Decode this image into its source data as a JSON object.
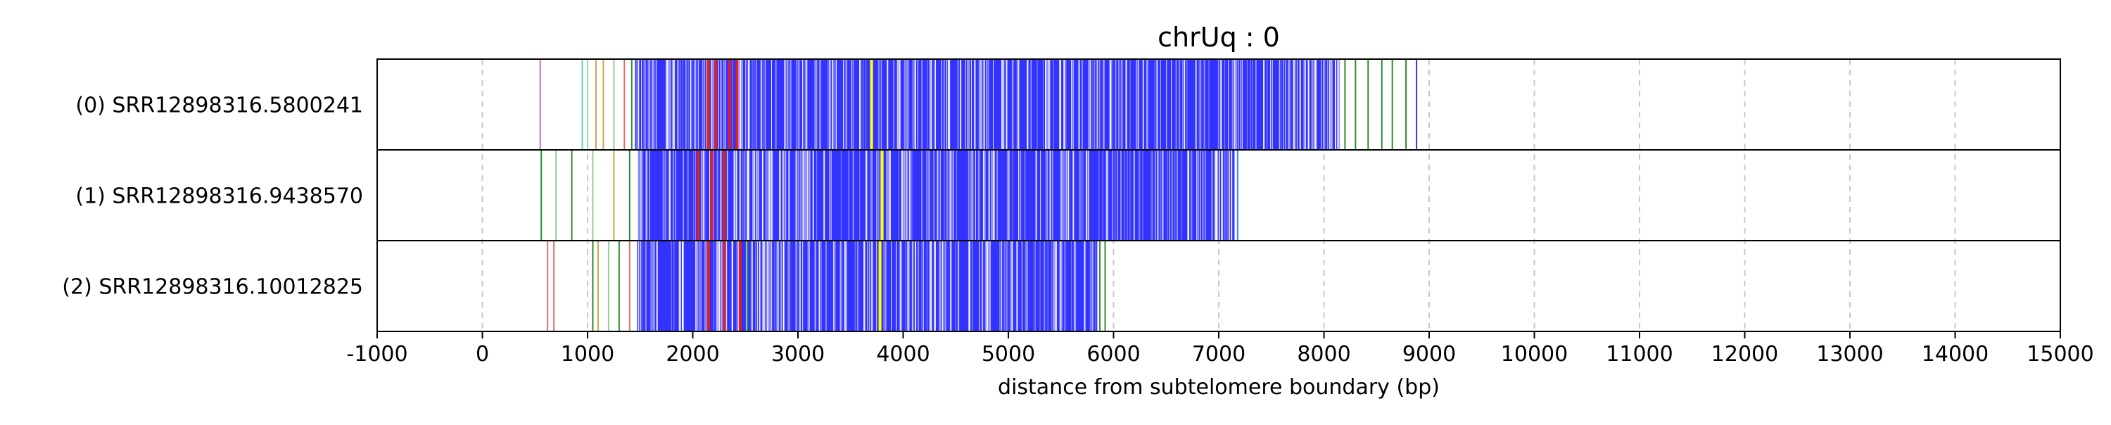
{
  "chart_data": {
    "type": "bar",
    "title": "chrUq : 0",
    "xlabel": "distance from subtelomere boundary (bp)",
    "ylabel": "",
    "xlim": [
      -1000,
      15000
    ],
    "x_ticks": [
      -1000,
      0,
      1000,
      2000,
      3000,
      4000,
      5000,
      6000,
      7000,
      8000,
      9000,
      10000,
      11000,
      12000,
      13000,
      14000,
      15000
    ],
    "grid": "x-dashed",
    "legend": "none",
    "colors": {
      "dense_blue": "#3333ff",
      "green": "#2e8b2e",
      "red": "#e02020",
      "yellow": "#ffff00",
      "light_blue": "#9999ff",
      "grid": "#c8c8c8",
      "frame": "#000000"
    },
    "reads": [
      {
        "label": "(0) SRR12898316.5800241",
        "start": 550,
        "dense_start": 1450,
        "dense_end": 8150,
        "end": 8900,
        "marks": [
          {
            "x": 550,
            "color": "#cc66cc"
          },
          {
            "x": 950,
            "color": "#66cccc"
          },
          {
            "x": 1000,
            "color": "#99dd99"
          },
          {
            "x": 1080,
            "color": "#dd9966"
          },
          {
            "x": 1150,
            "color": "#ccaa44"
          },
          {
            "x": 1250,
            "color": "#99cc99"
          },
          {
            "x": 1350,
            "color": "#e07070"
          },
          {
            "x": 1420,
            "color": "#2e8b2e"
          },
          {
            "x": 2150,
            "color": "#e02020"
          },
          {
            "x": 2220,
            "color": "#e02020"
          },
          {
            "x": 2350,
            "color": "#e02020"
          },
          {
            "x": 2420,
            "color": "#e02020"
          },
          {
            "x": 3700,
            "color": "#ffff00"
          },
          {
            "x": 8200,
            "color": "#2e8b2e"
          },
          {
            "x": 8300,
            "color": "#2e8b2e"
          },
          {
            "x": 8420,
            "color": "#2e8b2e"
          },
          {
            "x": 8550,
            "color": "#2e8b2e"
          },
          {
            "x": 8650,
            "color": "#2e8b2e"
          },
          {
            "x": 8780,
            "color": "#2e8b2e"
          },
          {
            "x": 8880,
            "color": "#3333ff"
          }
        ]
      },
      {
        "label": "(1) SRR12898316.9438570",
        "start": 550,
        "dense_start": 1480,
        "dense_end": 7150,
        "end": 7200,
        "marks": [
          {
            "x": 560,
            "color": "#2e8b2e"
          },
          {
            "x": 700,
            "color": "#99cc99"
          },
          {
            "x": 850,
            "color": "#2e8b2e"
          },
          {
            "x": 1050,
            "color": "#99cc99"
          },
          {
            "x": 1250,
            "color": "#ccaa44"
          },
          {
            "x": 1400,
            "color": "#2e8b2e"
          },
          {
            "x": 2050,
            "color": "#e02020"
          },
          {
            "x": 2180,
            "color": "#e02020"
          },
          {
            "x": 2300,
            "color": "#e02020"
          },
          {
            "x": 3800,
            "color": "#ffff00"
          },
          {
            "x": 7180,
            "color": "#3388ff"
          }
        ]
      },
      {
        "label": "(2) SRR12898316.10012825",
        "start": 600,
        "dense_start": 1470,
        "dense_end": 5850,
        "end": 5950,
        "marks": [
          {
            "x": 620,
            "color": "#e07070"
          },
          {
            "x": 680,
            "color": "#e07070"
          },
          {
            "x": 1050,
            "color": "#2e8b2e"
          },
          {
            "x": 1100,
            "color": "#ccaa44"
          },
          {
            "x": 1200,
            "color": "#99cc99"
          },
          {
            "x": 1300,
            "color": "#2e8b2e"
          },
          {
            "x": 1400,
            "color": "#e07070"
          },
          {
            "x": 2150,
            "color": "#e02020"
          },
          {
            "x": 2300,
            "color": "#e02020"
          },
          {
            "x": 2450,
            "color": "#e02020"
          },
          {
            "x": 2520,
            "color": "#2e8b2e"
          },
          {
            "x": 3780,
            "color": "#ffff00"
          },
          {
            "x": 5870,
            "color": "#2e8b2e"
          },
          {
            "x": 5920,
            "color": "#2e8b2e"
          }
        ]
      }
    ]
  }
}
